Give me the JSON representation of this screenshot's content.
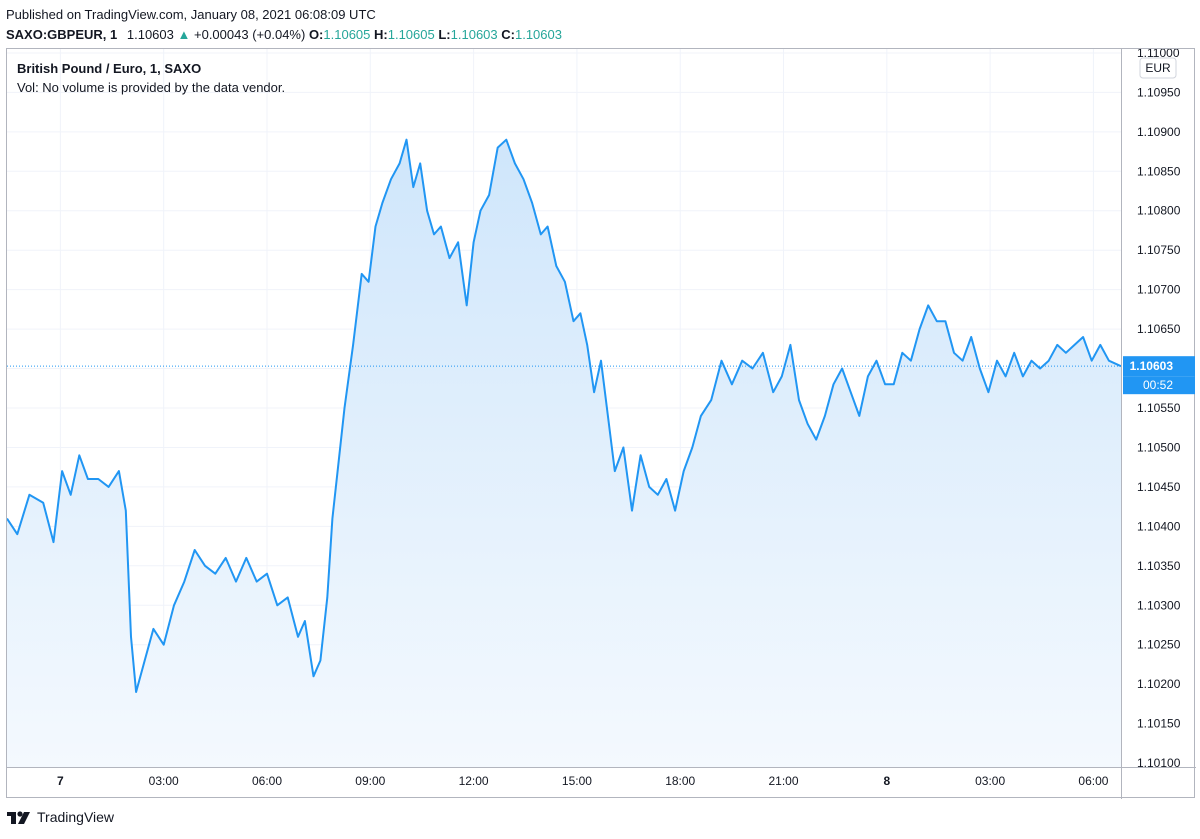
{
  "header": {
    "published": "Published on TradingView.com, January 08, 2021 06:08:09 UTC",
    "symbol": "SAXO:GBPEUR, 1",
    "last": "1.10603",
    "change_arrow": "▲",
    "change": "+0.00043 (+0.04%)",
    "o_label": "O:",
    "o_value": "1.10605",
    "h_label": "H:",
    "h_value": "1.10605",
    "l_label": "L:",
    "l_value": "1.10603",
    "c_label": "C:",
    "c_value": "1.10603"
  },
  "legend": {
    "title": "British Pound / Euro, 1, SAXO",
    "volume_note": "Vol: No volume is provided by the data vendor."
  },
  "axis": {
    "currency": "EUR",
    "price_tag": "1.10603",
    "countdown": "00:52"
  },
  "footer": {
    "brand": "TradingView"
  },
  "colors": {
    "line": "#2196f3",
    "fill_top": "#cfe6fb",
    "fill_bottom": "#f4f9fe",
    "grid": "#f0f3fa",
    "tag_bg": "#2196f3",
    "up": "#26a69a"
  },
  "chart_data": {
    "type": "area",
    "ylim": [
      1.10095,
      1.11005
    ],
    "y_ticks": [
      "1.11000",
      "1.10950",
      "1.10900",
      "1.10850",
      "1.10800",
      "1.10750",
      "1.10700",
      "1.10650",
      "1.10600",
      "1.10550",
      "1.10500",
      "1.10450",
      "1.10400",
      "1.10350",
      "1.10300",
      "1.10250",
      "1.10200",
      "1.10150",
      "1.10100"
    ],
    "y_tick_values": [
      1.11,
      1.1095,
      1.109,
      1.1085,
      1.108,
      1.1075,
      1.107,
      1.1065,
      1.106,
      1.1055,
      1.105,
      1.1045,
      1.104,
      1.1035,
      1.103,
      1.1025,
      1.102,
      1.1015,
      1.101
    ],
    "x_tick_labels": [
      "7",
      "03:00",
      "06:00",
      "09:00",
      "12:00",
      "15:00",
      "18:00",
      "21:00",
      "8",
      "03:00",
      "06:00"
    ],
    "x_tick_bold": [
      true,
      false,
      false,
      false,
      false,
      false,
      false,
      false,
      true,
      false,
      false
    ],
    "x_tick_hours": [
      0,
      3,
      6,
      9,
      12,
      15,
      18,
      21,
      24,
      27,
      30
    ],
    "xlim_hours": [
      -1.55,
      30.8
    ],
    "last_price": 1.10603,
    "x_hours": [
      -1.55,
      -1.25,
      -0.9,
      -0.5,
      -0.2,
      0.05,
      0.3,
      0.55,
      0.8,
      1.1,
      1.4,
      1.7,
      1.9,
      2.05,
      2.2,
      2.45,
      2.7,
      3.0,
      3.3,
      3.6,
      3.9,
      4.2,
      4.5,
      4.8,
      5.1,
      5.4,
      5.7,
      6.0,
      6.3,
      6.6,
      6.9,
      7.1,
      7.35,
      7.55,
      7.75,
      7.9,
      8.05,
      8.25,
      8.5,
      8.75,
      8.95,
      9.15,
      9.35,
      9.6,
      9.85,
      10.05,
      10.25,
      10.45,
      10.65,
      10.85,
      11.05,
      11.3,
      11.55,
      11.8,
      12.0,
      12.2,
      12.45,
      12.7,
      12.95,
      13.2,
      13.45,
      13.7,
      13.95,
      14.15,
      14.4,
      14.65,
      14.9,
      15.1,
      15.3,
      15.5,
      15.7,
      15.9,
      16.1,
      16.35,
      16.6,
      16.85,
      17.1,
      17.35,
      17.6,
      17.85,
      18.1,
      18.35,
      18.6,
      18.9,
      19.2,
      19.5,
      19.8,
      20.1,
      20.4,
      20.7,
      20.95,
      21.2,
      21.45,
      21.7,
      21.95,
      22.2,
      22.45,
      22.7,
      22.95,
      23.2,
      23.45,
      23.7,
      23.95,
      24.2,
      24.45,
      24.7,
      24.95,
      25.2,
      25.45,
      25.7,
      25.95,
      26.2,
      26.45,
      26.7,
      26.95,
      27.2,
      27.45,
      27.7,
      27.95,
      28.2,
      28.45,
      28.7,
      28.95,
      29.2,
      29.45,
      29.7,
      29.95,
      30.2,
      30.45,
      30.8
    ],
    "values": [
      1.1041,
      1.1039,
      1.1044,
      1.1043,
      1.1038,
      1.1047,
      1.1044,
      1.1049,
      1.1046,
      1.1046,
      1.1045,
      1.1047,
      1.1042,
      1.1026,
      1.1019,
      1.1023,
      1.1027,
      1.1025,
      1.103,
      1.1033,
      1.1037,
      1.1035,
      1.1034,
      1.1036,
      1.1033,
      1.1036,
      1.1033,
      1.1034,
      1.103,
      1.1031,
      1.1026,
      1.1028,
      1.1021,
      1.1023,
      1.1031,
      1.1041,
      1.1047,
      1.1055,
      1.1063,
      1.1072,
      1.1071,
      1.1078,
      1.1081,
      1.1084,
      1.1086,
      1.1089,
      1.1083,
      1.1086,
      1.108,
      1.1077,
      1.1078,
      1.1074,
      1.1076,
      1.1068,
      1.1076,
      1.108,
      1.1082,
      1.1088,
      1.1089,
      1.1086,
      1.1084,
      1.1081,
      1.1077,
      1.1078,
      1.1073,
      1.1071,
      1.1066,
      1.1067,
      1.1063,
      1.1057,
      1.1061,
      1.1054,
      1.1047,
      1.105,
      1.1042,
      1.1049,
      1.1045,
      1.1044,
      1.1046,
      1.1042,
      1.1047,
      1.105,
      1.1054,
      1.1056,
      1.1061,
      1.1058,
      1.1061,
      1.106,
      1.1062,
      1.1057,
      1.1059,
      1.1063,
      1.1056,
      1.1053,
      1.1051,
      1.1054,
      1.1058,
      1.106,
      1.1057,
      1.1054,
      1.1059,
      1.1061,
      1.1058,
      1.1058,
      1.1062,
      1.1061,
      1.1065,
      1.1068,
      1.1066,
      1.1066,
      1.1062,
      1.1061,
      1.1064,
      1.106,
      1.1057,
      1.1061,
      1.1059,
      1.1062,
      1.1059,
      1.1061,
      1.106,
      1.1061,
      1.1063,
      1.1062,
      1.1063,
      1.1064,
      1.1061,
      1.1063,
      1.1061,
      1.10603
    ]
  }
}
